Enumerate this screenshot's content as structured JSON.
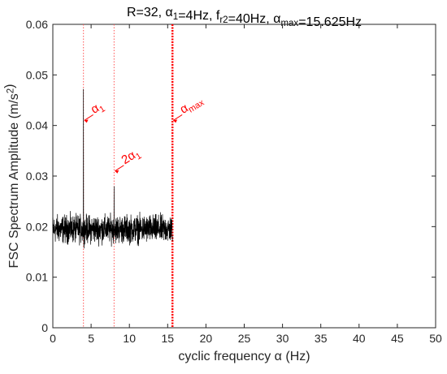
{
  "chart_data": {
    "type": "line",
    "title_parts": [
      {
        "text": "R=32, ",
        "sub": false
      },
      {
        "text": "α",
        "sub": false
      },
      {
        "text": "1",
        "sub": true
      },
      {
        "text": "=4Hz, f",
        "sub": false
      },
      {
        "text": "r2",
        "sub": true
      },
      {
        "text": "=40Hz, ",
        "sub": false
      },
      {
        "text": "α",
        "sub": false
      },
      {
        "text": "max",
        "sub": true
      },
      {
        "text": "=15.625Hz",
        "sub": false
      }
    ],
    "xlabel": "cyclic frequency α (Hz)",
    "ylabel_parts": [
      {
        "text": "FSC Spectrum Amplitude (m/s",
        "sup": false
      },
      {
        "text": "2",
        "sup": true
      },
      {
        "text": ")",
        "sup": false
      }
    ],
    "xlim": [
      0,
      50
    ],
    "ylim": [
      0,
      0.06
    ],
    "x_ticks": [
      0,
      5,
      10,
      15,
      20,
      25,
      30,
      35,
      40,
      45,
      50
    ],
    "x_tick_labels": [
      "0",
      "5",
      "10",
      "15",
      "20",
      "25",
      "30",
      "35",
      "40",
      "45",
      "50"
    ],
    "y_ticks": [
      0,
      0.01,
      0.02,
      0.03,
      0.04,
      0.05,
      0.06
    ],
    "y_tick_labels": [
      "0",
      "0.01",
      "0.02",
      "0.03",
      "0.04",
      "0.05",
      "0.06"
    ],
    "grid": false,
    "series": [
      {
        "color": "#000000",
        "x_range": [
          0,
          15.625
        ],
        "baseline": 0.0195,
        "noise_amplitude": 0.004,
        "peaks": [
          {
            "x": 4,
            "y": 0.0472
          },
          {
            "x": 8,
            "y": 0.028
          }
        ]
      }
    ],
    "reference_lines": [
      {
        "x": 4,
        "style": "dotted",
        "color": "#ff5555"
      },
      {
        "x": 8,
        "style": "dotted",
        "color": "#ff5555"
      },
      {
        "x": 15.625,
        "style": "dotted-thick",
        "color": "#ff0000"
      }
    ],
    "annotations": [
      {
        "x": 4,
        "y": 0.041,
        "parts": [
          {
            "text": "α",
            "sub": false
          },
          {
            "text": "1",
            "sub": true
          }
        ],
        "color": "#ff0000"
      },
      {
        "x": 8,
        "y": 0.031,
        "parts": [
          {
            "text": "2α",
            "sub": false
          },
          {
            "text": "1",
            "sub": true
          }
        ],
        "color": "#ff0000"
      },
      {
        "x": 15.625,
        "y": 0.041,
        "parts": [
          {
            "text": "α",
            "sub": false
          },
          {
            "text": "max",
            "sub": true
          }
        ],
        "color": "#ff0000"
      }
    ]
  }
}
